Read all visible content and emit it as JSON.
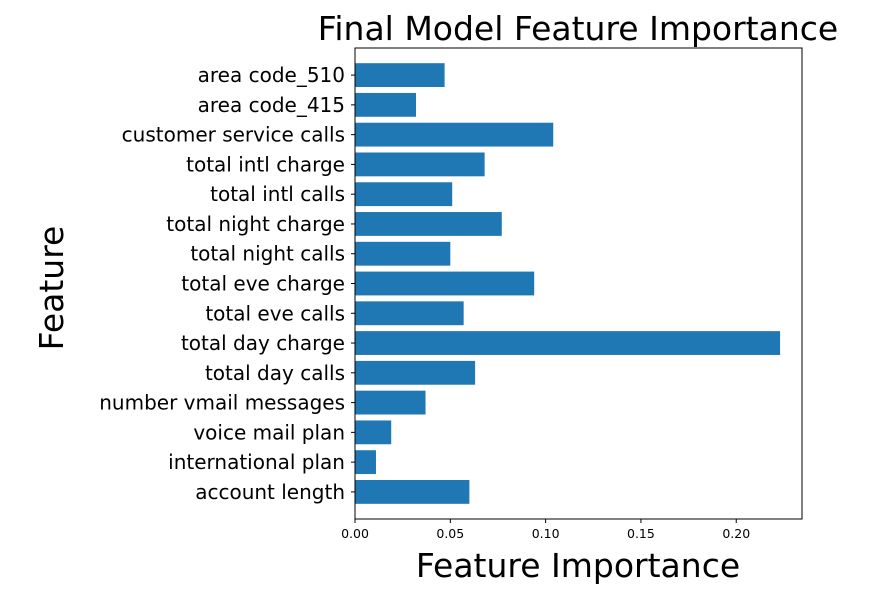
{
  "chart_data": {
    "type": "bar",
    "orientation": "horizontal",
    "title": "Final Model Feature Importance",
    "xlabel": "Feature Importance",
    "ylabel": "Feature",
    "xlim": [
      0,
      0.2345
    ],
    "xticks": [
      "0.00",
      "0.05",
      "0.10",
      "0.15",
      "0.20"
    ],
    "xtick_values": [
      0,
      0.05,
      0.1,
      0.15,
      0.2
    ],
    "grid": false,
    "bar_color": "#1f77b4",
    "categories": [
      "account length",
      "international plan",
      "voice mail plan",
      "number vmail messages",
      "total day calls",
      "total day charge",
      "total eve calls",
      "total eve charge",
      "total night calls",
      "total night charge",
      "total intl calls",
      "total intl charge",
      "customer service calls",
      "area code_415",
      "area code_510"
    ],
    "values": [
      0.06,
      0.011,
      0.019,
      0.037,
      0.063,
      0.223,
      0.057,
      0.094,
      0.05,
      0.077,
      0.051,
      0.068,
      0.104,
      0.032,
      0.047
    ]
  }
}
